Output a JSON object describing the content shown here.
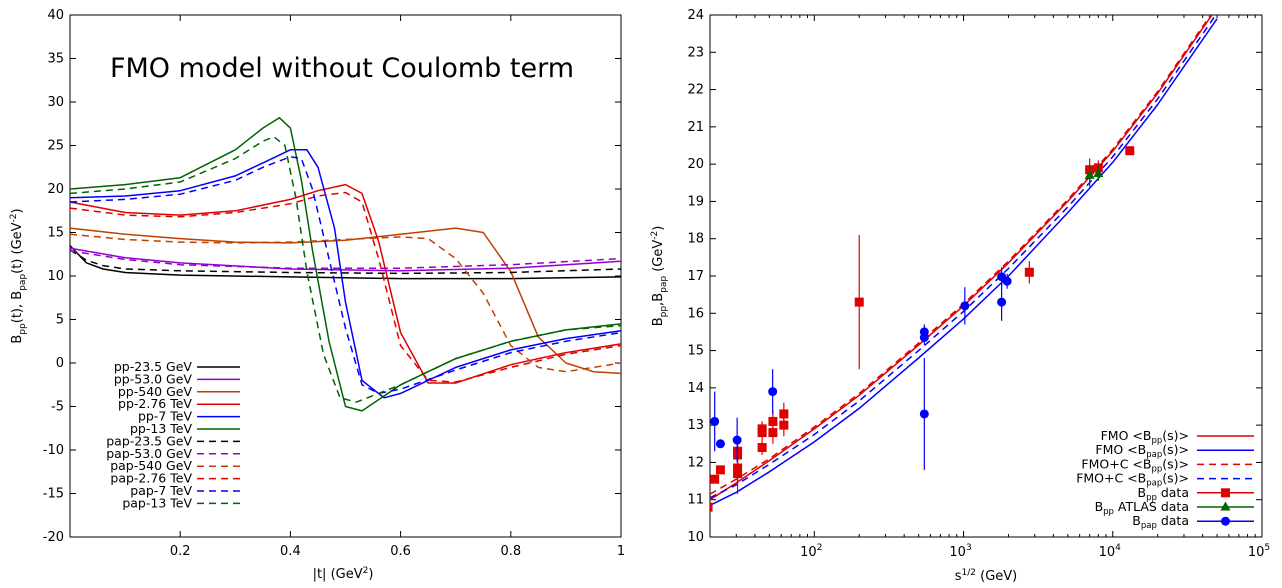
{
  "chart_data": [
    {
      "type": "line",
      "title": "FMO model without Coulomb term",
      "xlabel": "|t| (GeV2)",
      "xlabel_parts": {
        "main": "|t| (GeV",
        "sup": "2",
        "tail": ")"
      },
      "ylabel": "Bpp(t), Bpap(t) (GeV-2)",
      "xlim": [
        0.0,
        1.0
      ],
      "ylim": [
        -20,
        40
      ],
      "x_ticks": [
        "0.2",
        "0.4",
        "0.6",
        "0.8",
        "1"
      ],
      "y_ticks": [
        "-20",
        "-15",
        "-10",
        "-5",
        "0",
        "5",
        "10",
        "15",
        "20",
        "25",
        "30",
        "35",
        "40"
      ],
      "legend_position": "bottom-left",
      "series": [
        {
          "name": "pp-23.5 GeV",
          "color": "#000000",
          "dash": false,
          "x": [
            0.0,
            0.03,
            0.06,
            0.1,
            0.2,
            0.4,
            0.6,
            0.8,
            1.0
          ],
          "y": [
            13.5,
            11.5,
            10.8,
            10.4,
            10.1,
            9.9,
            9.7,
            9.7,
            9.9
          ]
        },
        {
          "name": "pp-53.0 GeV",
          "color": "#9400d3",
          "dash": false,
          "x": [
            0.0,
            0.1,
            0.2,
            0.4,
            0.6,
            0.8,
            1.0
          ],
          "y": [
            13.2,
            12.1,
            11.5,
            10.8,
            10.6,
            10.9,
            11.7
          ]
        },
        {
          "name": "pp-540 GeV",
          "color": "#c04000",
          "dash": false,
          "x": [
            0.0,
            0.1,
            0.2,
            0.3,
            0.4,
            0.5,
            0.6,
            0.7,
            0.75,
            0.8,
            0.85,
            0.9,
            0.95,
            1.0
          ],
          "y": [
            15.5,
            14.8,
            14.3,
            13.9,
            13.8,
            14.1,
            14.8,
            15.5,
            15.0,
            10.5,
            3.0,
            0.0,
            -1.0,
            -1.2
          ]
        },
        {
          "name": "pp-2.76 TeV",
          "color": "#e00000",
          "dash": false,
          "x": [
            0.0,
            0.1,
            0.2,
            0.3,
            0.4,
            0.45,
            0.5,
            0.53,
            0.56,
            0.6,
            0.65,
            0.7,
            0.8,
            0.9,
            1.0
          ],
          "y": [
            18.5,
            17.3,
            17.0,
            17.5,
            18.8,
            19.8,
            20.5,
            19.5,
            14.0,
            3.5,
            -2.3,
            -2.3,
            -0.2,
            1.2,
            2.2
          ]
        },
        {
          "name": "pp-7 TeV",
          "color": "#0000ff",
          "dash": false,
          "x": [
            0.0,
            0.1,
            0.2,
            0.3,
            0.35,
            0.4,
            0.43,
            0.45,
            0.48,
            0.5,
            0.53,
            0.57,
            0.6,
            0.7,
            0.8,
            0.9,
            1.0
          ],
          "y": [
            19.0,
            19.2,
            19.8,
            21.5,
            23.0,
            24.5,
            24.5,
            22.5,
            15.5,
            7.0,
            -2.0,
            -4.0,
            -3.5,
            -0.5,
            1.5,
            2.8,
            3.7
          ]
        },
        {
          "name": "pp-13 TeV",
          "color": "#006400",
          "dash": false,
          "x": [
            0.0,
            0.1,
            0.2,
            0.3,
            0.35,
            0.38,
            0.4,
            0.42,
            0.44,
            0.47,
            0.5,
            0.53,
            0.6,
            0.7,
            0.8,
            0.9,
            1.0
          ],
          "y": [
            20.0,
            20.5,
            21.3,
            24.5,
            27.0,
            28.2,
            27.0,
            21.0,
            13.0,
            2.5,
            -5.0,
            -5.5,
            -2.5,
            0.5,
            2.5,
            3.8,
            4.5
          ]
        },
        {
          "name": "pap-23.5 GeV",
          "color": "#000000",
          "dash": true,
          "x": [
            0.0,
            0.03,
            0.06,
            0.1,
            0.2,
            0.4,
            0.6,
            0.8,
            1.0
          ],
          "y": [
            13.0,
            11.8,
            11.2,
            10.8,
            10.6,
            10.4,
            10.3,
            10.4,
            10.8
          ]
        },
        {
          "name": "pap-53.0 GeV",
          "color": "#9400d3",
          "dash": true,
          "x": [
            0.0,
            0.1,
            0.2,
            0.4,
            0.6,
            0.8,
            1.0
          ],
          "y": [
            12.9,
            11.9,
            11.3,
            10.9,
            10.9,
            11.3,
            12.0
          ]
        },
        {
          "name": "pap-540 GeV",
          "color": "#c04000",
          "dash": true,
          "x": [
            0.0,
            0.1,
            0.2,
            0.3,
            0.4,
            0.5,
            0.6,
            0.65,
            0.7,
            0.75,
            0.8,
            0.85,
            0.9,
            1.0
          ],
          "y": [
            14.8,
            14.2,
            13.9,
            13.8,
            13.9,
            14.2,
            14.5,
            14.3,
            12.0,
            8.0,
            2.0,
            -0.5,
            -1.0,
            0.0
          ]
        },
        {
          "name": "pap-2.76 TeV",
          "color": "#e00000",
          "dash": true,
          "x": [
            0.0,
            0.1,
            0.2,
            0.3,
            0.4,
            0.45,
            0.5,
            0.53,
            0.56,
            0.6,
            0.65,
            0.7,
            0.8,
            0.9,
            1.0
          ],
          "y": [
            17.8,
            17.0,
            16.8,
            17.3,
            18.3,
            19.2,
            19.6,
            18.5,
            12.0,
            2.0,
            -2.0,
            -2.2,
            -0.5,
            1.0,
            2.0
          ]
        },
        {
          "name": "pap-7 TeV",
          "color": "#0000ff",
          "dash": true,
          "x": [
            0.0,
            0.1,
            0.2,
            0.3,
            0.35,
            0.4,
            0.42,
            0.44,
            0.47,
            0.5,
            0.53,
            0.56,
            0.6,
            0.7,
            0.8,
            0.9,
            1.0
          ],
          "y": [
            18.5,
            18.8,
            19.4,
            21.0,
            22.5,
            23.7,
            23.5,
            20.0,
            12.0,
            4.0,
            -2.5,
            -3.5,
            -3.0,
            -0.8,
            1.2,
            2.5,
            3.5
          ]
        },
        {
          "name": "pap-13 TeV",
          "color": "#006400",
          "dash": true,
          "x": [
            0.0,
            0.1,
            0.2,
            0.3,
            0.35,
            0.37,
            0.39,
            0.41,
            0.43,
            0.46,
            0.49,
            0.52,
            0.6,
            0.7,
            0.8,
            0.9,
            1.0
          ],
          "y": [
            19.5,
            20.0,
            20.8,
            23.5,
            25.5,
            26.0,
            25.0,
            19.0,
            10.5,
            1.0,
            -4.0,
            -4.5,
            -2.5,
            0.5,
            2.5,
            3.8,
            4.3
          ]
        }
      ]
    },
    {
      "type": "line",
      "title": "",
      "xlabel": "s1/2 (GeV)",
      "xlabel_parts": {
        "main": "s",
        "sup": "1/2",
        "tail": " (GeV)"
      },
      "ylabel": "Bpp,Bpap (GeV-2)",
      "xscale": "log",
      "xlim": [
        20,
        100000
      ],
      "ylim": [
        10,
        24
      ],
      "x_tick_labels": [
        {
          "value": 100,
          "base": "10",
          "exp": "2"
        },
        {
          "value": 1000,
          "base": "10",
          "exp": "3"
        },
        {
          "value": 10000,
          "base": "10",
          "exp": "4"
        },
        {
          "value": 100000,
          "base": "10",
          "exp": "5"
        }
      ],
      "y_ticks": [
        "10",
        "11",
        "12",
        "13",
        "14",
        "15",
        "16",
        "17",
        "18",
        "19",
        "20",
        "21",
        "22",
        "23",
        "24"
      ],
      "legend_position": "bottom-right",
      "legend": [
        {
          "text": "FMO <B",
          "sub": "pp",
          "tail": "(s)>",
          "color": "#e00000",
          "style": "solid"
        },
        {
          "text": "FMO <B",
          "sub": "pap",
          "tail": "(s)>",
          "color": "#0000ff",
          "style": "solid"
        },
        {
          "text": "FMO+C <B",
          "sub": "pp",
          "tail": "(s)>",
          "color": "#e00000",
          "style": "dashed"
        },
        {
          "text": "FMO+C <B",
          "sub": "pap",
          "tail": "(s)>",
          "color": "#0000ff",
          "style": "dashed"
        },
        {
          "text": "B",
          "sub": "pp",
          "tail": " data",
          "color": "#e00000",
          "style": "square"
        },
        {
          "text": "B",
          "sub": "pp",
          "tail": " ATLAS data",
          "color": "#006400",
          "style": "triangle"
        },
        {
          "text": "B",
          "sub": "pap",
          "tail": " data",
          "color": "#0000ff",
          "style": "circle"
        }
      ],
      "curves": [
        {
          "name": "FMO <Bpp(s)>",
          "color": "#e00000",
          "dash": false,
          "x": [
            20,
            30,
            50,
            100,
            200,
            500,
            1000,
            2000,
            5000,
            10000,
            20000,
            50000
          ],
          "y": [
            11.0,
            11.45,
            12.05,
            12.9,
            13.8,
            15.15,
            16.2,
            17.35,
            19.0,
            20.35,
            21.9,
            24.2
          ]
        },
        {
          "name": "FMO <Bpap(s)>",
          "color": "#0000ff",
          "dash": false,
          "x": [
            20,
            30,
            50,
            100,
            200,
            500,
            1000,
            2000,
            5000,
            10000,
            20000,
            50000
          ],
          "y": [
            10.85,
            11.2,
            11.75,
            12.55,
            13.45,
            14.8,
            15.85,
            17.0,
            18.7,
            20.05,
            21.6,
            23.9
          ]
        },
        {
          "name": "FMO+C <Bpp(s)>",
          "color": "#e00000",
          "dash": true,
          "x": [
            20,
            30,
            50,
            100,
            200,
            500,
            1000,
            2000,
            5000,
            10000,
            20000,
            50000
          ],
          "y": [
            11.15,
            11.55,
            12.1,
            12.95,
            13.85,
            15.2,
            16.25,
            17.4,
            19.05,
            20.4,
            21.95,
            24.25
          ]
        },
        {
          "name": "FMO+C <Bpap(s)>",
          "color": "#0000ff",
          "dash": true,
          "x": [
            20,
            30,
            50,
            100,
            200,
            500,
            1000,
            2000,
            5000,
            10000,
            20000,
            50000
          ],
          "y": [
            11.05,
            11.4,
            11.95,
            12.75,
            13.65,
            15.0,
            16.05,
            17.2,
            18.85,
            20.2,
            21.75,
            24.05
          ]
        }
      ],
      "points": [
        {
          "series": "Bpp data",
          "marker": "square",
          "color": "#e00000",
          "data": [
            {
              "x": 19.4,
              "y": 10.8,
              "err": 0.35
            },
            {
              "x": 21.5,
              "y": 11.55,
              "err": 0.1
            },
            {
              "x": 23.5,
              "y": 11.8,
              "err": 0.1
            },
            {
              "x": 30.6,
              "y": 11.7,
              "err": 0.3
            },
            {
              "x": 30.6,
              "y": 11.85,
              "err": 0.7
            },
            {
              "x": 30.6,
              "y": 12.3,
              "err": 0.2
            },
            {
              "x": 30.6,
              "y": 12.2,
              "err": 0.3
            },
            {
              "x": 44.7,
              "y": 12.4,
              "err": 0.2
            },
            {
              "x": 44.7,
              "y": 12.8,
              "err": 0.2
            },
            {
              "x": 44.7,
              "y": 12.9,
              "err": 0.2
            },
            {
              "x": 52.8,
              "y": 12.8,
              "err": 0.3
            },
            {
              "x": 52.8,
              "y": 13.1,
              "err": 0.3
            },
            {
              "x": 62.5,
              "y": 13.0,
              "err": 0.3
            },
            {
              "x": 62.5,
              "y": 13.3,
              "err": 0.3
            },
            {
              "x": 200,
              "y": 16.3,
              "err": 1.8
            },
            {
              "x": 2760,
              "y": 17.1,
              "err": 0.3
            },
            {
              "x": 7000,
              "y": 19.85,
              "err": 0.3
            },
            {
              "x": 8000,
              "y": 19.9,
              "err": 0.2
            },
            {
              "x": 13000,
              "y": 20.36,
              "err": 0.1
            }
          ]
        },
        {
          "series": "Bpp ATLAS data",
          "marker": "triangle",
          "color": "#006400",
          "data": [
            {
              "x": 7000,
              "y": 19.7,
              "err": 0.3
            },
            {
              "x": 8000,
              "y": 19.75,
              "err": 0.2
            }
          ]
        },
        {
          "series": "Bpap data",
          "marker": "circle",
          "color": "#0000ff",
          "data": [
            {
              "x": 21.5,
              "y": 13.1,
              "err": 0.8
            },
            {
              "x": 23.5,
              "y": 12.5,
              "err": 0.1
            },
            {
              "x": 30.4,
              "y": 12.6,
              "err": 0.6
            },
            {
              "x": 52.6,
              "y": 13.9,
              "err": 0.6
            },
            {
              "x": 546,
              "y": 15.5,
              "err": 0.2
            },
            {
              "x": 546,
              "y": 15.35,
              "err": 0.2
            },
            {
              "x": 546,
              "y": 13.3,
              "err": 1.5
            },
            {
              "x": 1020,
              "y": 16.2,
              "err": 0.5
            },
            {
              "x": 1800,
              "y": 16.98,
              "err": 0.25
            },
            {
              "x": 1800,
              "y": 16.3,
              "err": 0.5
            },
            {
              "x": 1960,
              "y": 16.86,
              "err": 0.2
            }
          ]
        }
      ]
    }
  ]
}
